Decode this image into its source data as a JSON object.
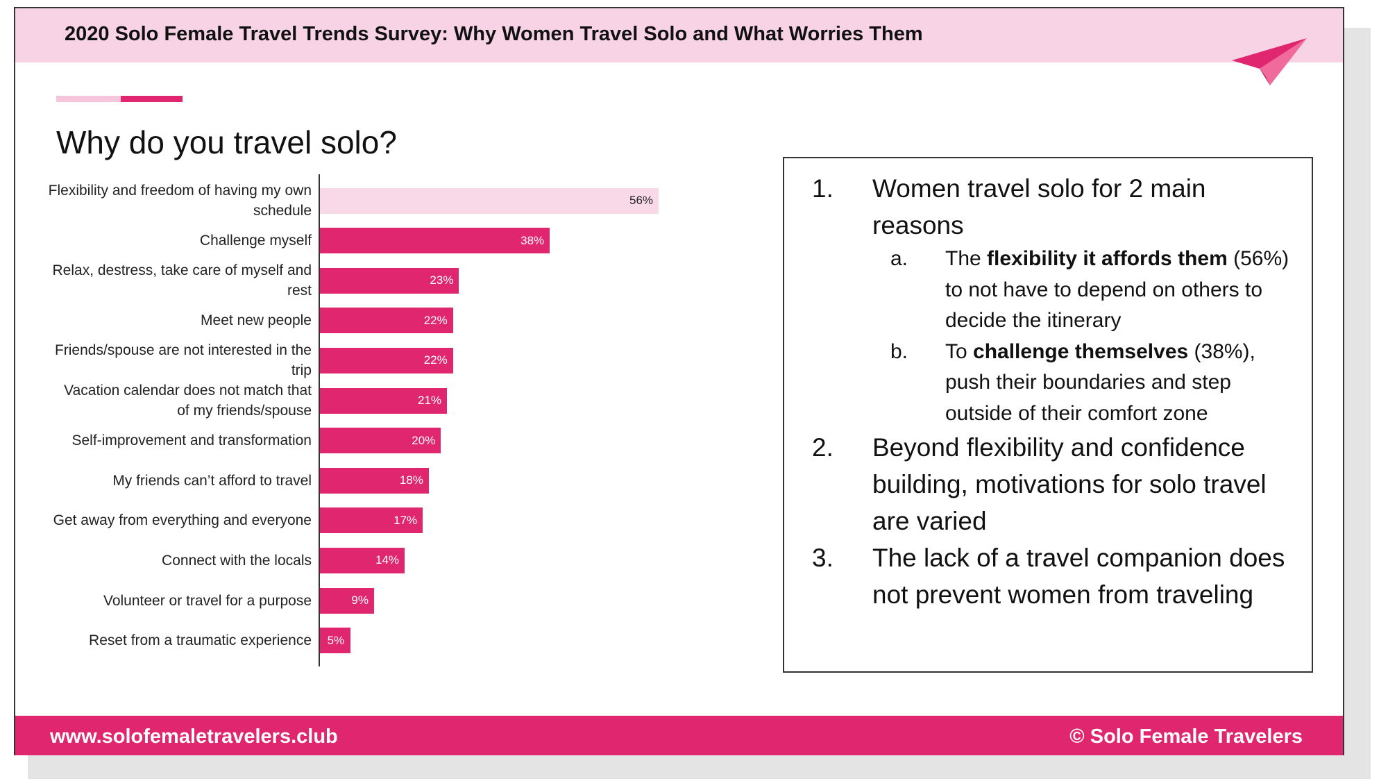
{
  "header": {
    "title": "2020 Solo Female Travel Trends Survey: Why Women Travel Solo and What Worries Them"
  },
  "chart_data": {
    "type": "bar",
    "orientation": "horizontal",
    "title": "Why do you travel solo?",
    "categories": [
      "Flexibility and freedom of having my own schedule",
      "Challenge myself",
      "Relax, destress, take care of myself and rest",
      "Meet new people",
      "Friends/spouse are not interested in the trip",
      "Vacation calendar does not match that of my friends/spouse",
      "Self-improvement and transformation",
      "My friends can’t afford to travel",
      "Get away from everything and everyone",
      "Connect with the locals",
      "Volunteer or travel for a purpose",
      "Reset from a traumatic experience"
    ],
    "values": [
      56,
      38,
      23,
      22,
      22,
      21,
      20,
      18,
      17,
      14,
      9,
      5
    ],
    "value_labels": [
      "56%",
      "38%",
      "23%",
      "22%",
      "22%",
      "21%",
      "20%",
      "18%",
      "17%",
      "14%",
      "9%",
      "5%"
    ],
    "colors": [
      "#f9d9e8",
      "#e0266e",
      "#e0266e",
      "#e0266e",
      "#e0266e",
      "#e0266e",
      "#e0266e",
      "#e0266e",
      "#e0266e",
      "#e0266e",
      "#e0266e",
      "#e0266e"
    ]
  },
  "notes": [
    {
      "marker": "1.",
      "text": "Women travel solo for 2 main reasons",
      "subitems": [
        {
          "marker": "a.",
          "parts": [
            {
              "text": "The "
            },
            {
              "text": "flexibility it affords them",
              "bold": true
            },
            {
              "text": " (56%) to not have to depend on others to decide the itinerary"
            }
          ]
        },
        {
          "marker": "b.",
          "parts": [
            {
              "text": "To "
            },
            {
              "text": "challenge themselves",
              "bold": true
            },
            {
              "text": " (38%), push their boundaries and step outside of their comfort zone"
            }
          ]
        }
      ]
    },
    {
      "marker": "2.",
      "text": "Beyond flexibility and confidence building, motivations for solo travel are varied"
    },
    {
      "marker": "3.",
      "text": "The lack of a travel companion does not prevent women from traveling"
    }
  ],
  "footer": {
    "left": "www.solofemaletravelers.club",
    "right": "© Solo Female Travelers"
  }
}
